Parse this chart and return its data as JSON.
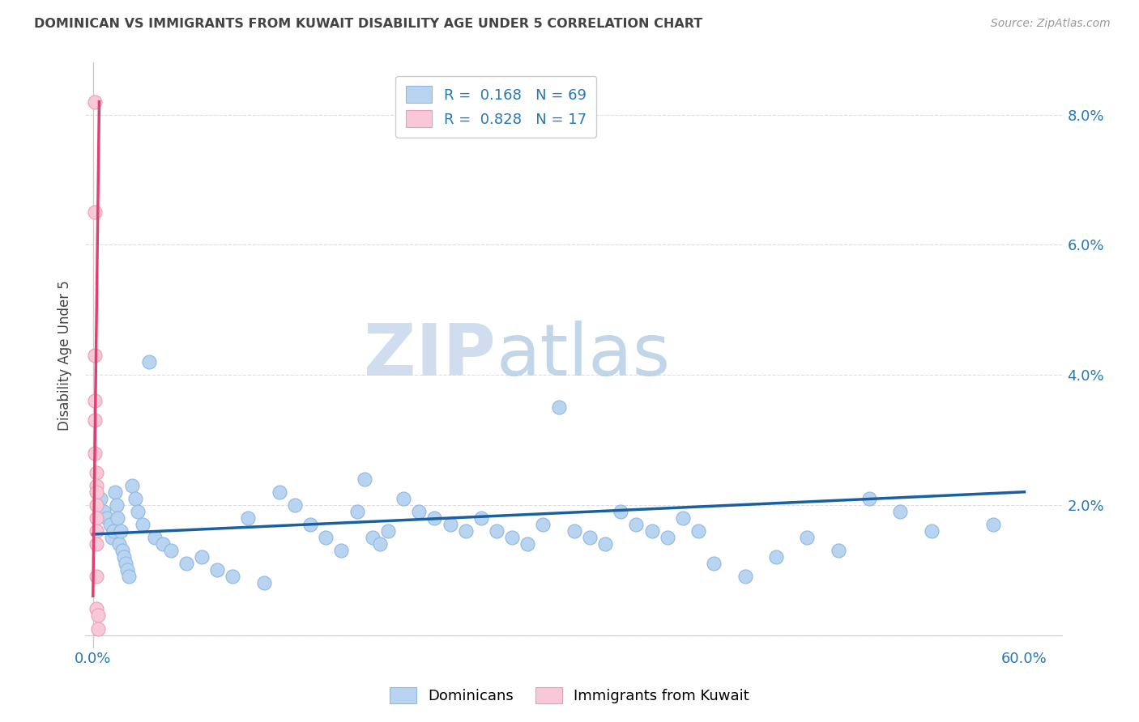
{
  "title": "DOMINICAN VS IMMIGRANTS FROM KUWAIT DISABILITY AGE UNDER 5 CORRELATION CHART",
  "source": "Source: ZipAtlas.com",
  "ylabel": "Disability Age Under 5",
  "xlim": [
    -0.005,
    0.625
  ],
  "ylim": [
    -0.002,
    0.088
  ],
  "yticks": [
    0.0,
    0.02,
    0.04,
    0.06,
    0.08
  ],
  "ytick_labels": [
    "",
    "2.0%",
    "4.0%",
    "6.0%",
    "8.0%"
  ],
  "xticks": [
    0.0,
    0.1,
    0.2,
    0.3,
    0.4,
    0.5,
    0.6
  ],
  "xtick_labels": [
    "0.0%",
    "",
    "",
    "",
    "",
    "",
    "60.0%"
  ],
  "dominicans_x": [
    0.005,
    0.007,
    0.009,
    0.011,
    0.012,
    0.013,
    0.014,
    0.015,
    0.016,
    0.017,
    0.018,
    0.019,
    0.02,
    0.021,
    0.022,
    0.023,
    0.025,
    0.027,
    0.029,
    0.032,
    0.036,
    0.04,
    0.045,
    0.05,
    0.06,
    0.07,
    0.08,
    0.09,
    0.1,
    0.11,
    0.12,
    0.13,
    0.14,
    0.15,
    0.16,
    0.17,
    0.175,
    0.18,
    0.185,
    0.19,
    0.2,
    0.21,
    0.22,
    0.23,
    0.24,
    0.25,
    0.26,
    0.27,
    0.28,
    0.29,
    0.3,
    0.31,
    0.32,
    0.33,
    0.34,
    0.35,
    0.36,
    0.37,
    0.38,
    0.39,
    0.4,
    0.42,
    0.44,
    0.46,
    0.48,
    0.5,
    0.52,
    0.54,
    0.58
  ],
  "dominicans_y": [
    0.021,
    0.019,
    0.018,
    0.017,
    0.015,
    0.016,
    0.022,
    0.02,
    0.018,
    0.014,
    0.016,
    0.013,
    0.012,
    0.011,
    0.01,
    0.009,
    0.023,
    0.021,
    0.019,
    0.017,
    0.042,
    0.015,
    0.014,
    0.013,
    0.011,
    0.012,
    0.01,
    0.009,
    0.018,
    0.008,
    0.022,
    0.02,
    0.017,
    0.015,
    0.013,
    0.019,
    0.024,
    0.015,
    0.014,
    0.016,
    0.021,
    0.019,
    0.018,
    0.017,
    0.016,
    0.018,
    0.016,
    0.015,
    0.014,
    0.017,
    0.035,
    0.016,
    0.015,
    0.014,
    0.019,
    0.017,
    0.016,
    0.015,
    0.018,
    0.016,
    0.011,
    0.009,
    0.012,
    0.015,
    0.013,
    0.021,
    0.019,
    0.016,
    0.017
  ],
  "kuwait_x": [
    0.001,
    0.001,
    0.001,
    0.001,
    0.001,
    0.001,
    0.002,
    0.002,
    0.002,
    0.002,
    0.002,
    0.002,
    0.002,
    0.002,
    0.002,
    0.003,
    0.003
  ],
  "kuwait_y": [
    0.082,
    0.065,
    0.043,
    0.036,
    0.033,
    0.028,
    0.025,
    0.023,
    0.022,
    0.02,
    0.018,
    0.016,
    0.014,
    0.009,
    0.004,
    0.003,
    0.001
  ],
  "R_dominicans": 0.168,
  "N_dominicans": 69,
  "R_kuwait": 0.828,
  "N_kuwait": 17,
  "dom_line_x0": 0.0,
  "dom_line_x1": 0.6,
  "dom_line_y0": 0.0155,
  "dom_line_y1": 0.022,
  "kuw_line_x0": 0.0,
  "kuw_line_x1": 0.004,
  "kuw_line_y0": 0.006,
  "kuw_line_y1": 0.082,
  "color_dominicans_fill": "#b8d4f0",
  "color_dominicans_edge": "#90b8e0",
  "color_kuwait_fill": "#f8c8d8",
  "color_kuwait_edge": "#e8a0b8",
  "color_line_dominicans": "#1a5fa0",
  "color_line_kuwait": "#e04070",
  "color_text_blue": "#2977b5",
  "color_text_title": "#444444",
  "watermark_zip": "ZIP",
  "watermark_atlas": "atlas",
  "grid_color": "#dddddd",
  "background_color": "#ffffff",
  "legend_labels": [
    "Dominicans",
    "Immigrants from Kuwait"
  ]
}
